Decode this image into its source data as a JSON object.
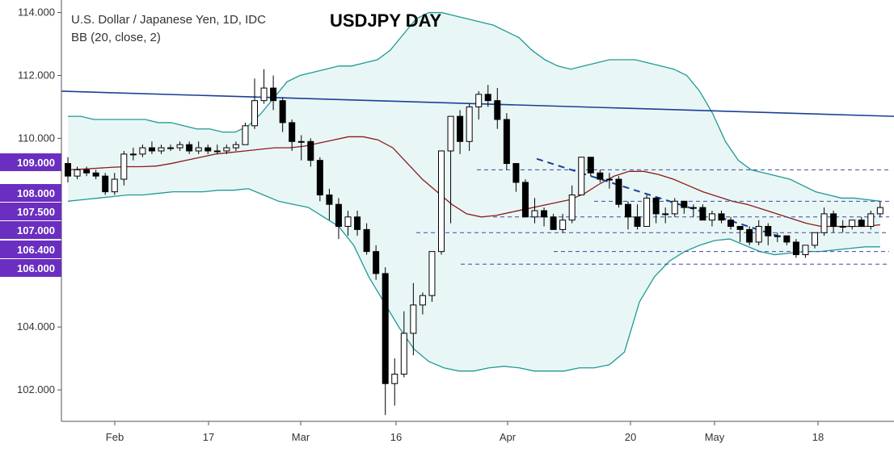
{
  "chart_data": {
    "type": "candlestick",
    "title": "USDJPY DAY",
    "symbol_label": "U.S. Dollar / Japanese Yen, 1D, IDC",
    "indicator_label": "BB (20, close, 2)",
    "ylim": [
      101.0,
      114.4
    ],
    "y_ticks": [
      "102.000",
      "104.000",
      "110.000",
      "112.000",
      "114.000"
    ],
    "highlighted_levels": [
      {
        "label": "109.000",
        "value": 109.0
      },
      {
        "label": "108.000",
        "value": 108.0
      },
      {
        "label": "107.500",
        "value": 107.5
      },
      {
        "label": "107.000",
        "value": 107.0
      },
      {
        "label": "106.400",
        "value": 106.4
      },
      {
        "label": "106.000",
        "value": 106.0
      }
    ],
    "x_ticks": [
      "Feb",
      "17",
      "Mar",
      "16",
      "Apr",
      "20",
      "May",
      "18"
    ],
    "grid": false,
    "series": [
      {
        "name": "candles",
        "o": [
          109.2,
          108.8,
          109.0,
          108.9,
          108.8,
          108.3,
          108.7,
          109.5,
          109.5,
          109.7,
          109.6,
          109.7,
          109.7,
          109.8,
          109.6,
          109.7,
          109.6,
          109.6,
          109.7,
          109.8,
          110.4,
          111.2,
          111.6,
          111.2,
          110.5,
          109.9,
          109.9,
          109.3,
          108.2,
          107.9,
          107.2,
          107.5,
          107.1,
          106.4,
          105.7,
          102.2,
          102.5,
          103.8,
          104.7,
          105.0,
          106.4,
          109.6,
          110.7,
          109.9,
          111.0,
          111.4,
          111.2,
          110.6,
          109.2,
          108.6,
          107.5,
          107.7,
          107.5,
          107.1,
          107.4,
          108.2,
          109.4,
          108.9,
          108.7,
          108.7,
          107.9,
          107.5,
          107.2,
          108.1,
          107.6,
          107.6,
          108.0,
          107.8,
          107.8,
          107.4,
          107.6,
          107.4,
          107.2,
          107.1,
          106.7,
          107.2,
          106.9,
          106.9,
          106.7,
          106.3,
          106.6,
          107.0,
          107.6,
          107.2,
          107.2,
          107.4,
          107.2,
          107.6
        ]
      },
      {
        "name": "candles_close",
        "c": [
          108.8,
          109.0,
          108.9,
          108.8,
          108.3,
          108.7,
          109.5,
          109.5,
          109.7,
          109.6,
          109.7,
          109.7,
          109.8,
          109.6,
          109.7,
          109.6,
          109.6,
          109.7,
          109.8,
          110.4,
          111.2,
          111.6,
          111.2,
          110.5,
          109.9,
          109.9,
          109.3,
          108.2,
          107.9,
          107.2,
          107.5,
          107.1,
          106.4,
          105.7,
          102.2,
          102.5,
          103.8,
          104.7,
          105.0,
          106.4,
          109.6,
          110.7,
          109.9,
          111.0,
          111.4,
          111.2,
          110.6,
          109.2,
          108.6,
          107.5,
          107.7,
          107.5,
          107.1,
          107.4,
          108.2,
          109.4,
          108.9,
          108.7,
          108.7,
          107.9,
          107.5,
          107.2,
          108.1,
          107.6,
          107.6,
          108.0,
          107.8,
          107.8,
          107.4,
          107.6,
          107.4,
          107.2,
          107.1,
          106.7,
          107.2,
          106.9,
          106.9,
          106.7,
          106.3,
          106.6,
          107.0,
          107.6,
          107.2,
          107.2,
          107.4,
          107.2,
          107.6,
          107.8
        ]
      },
      {
        "name": "candles_high",
        "h": [
          109.4,
          109.1,
          109.1,
          109.0,
          108.9,
          108.9,
          109.6,
          109.7,
          109.8,
          109.9,
          109.8,
          109.8,
          109.9,
          109.9,
          109.9,
          109.8,
          109.8,
          109.8,
          109.9,
          110.5,
          111.9,
          112.2,
          112.0,
          111.3,
          110.6,
          110.1,
          110.0,
          109.4,
          108.4,
          108.1,
          107.7,
          107.7,
          107.3,
          106.6,
          105.9,
          103.0,
          104.5,
          105.4,
          105.1,
          106.4,
          107.3,
          109.9,
          110.9,
          111.1,
          111.5,
          111.7,
          111.6,
          110.8,
          109.2,
          108.7,
          108.1,
          107.8,
          107.6,
          107.6,
          108.5,
          109.4,
          109.4,
          109.0,
          108.9,
          108.8,
          108.0,
          107.9,
          108.2,
          108.1,
          107.8,
          108.1,
          108.0,
          107.9,
          107.9,
          107.7,
          107.7,
          107.5,
          107.2,
          107.2,
          107.4,
          107.3,
          107.0,
          106.9,
          106.8,
          106.6,
          107.0,
          107.8,
          107.7,
          107.4,
          107.4,
          107.5,
          107.7,
          108.0
        ]
      },
      {
        "name": "candles_low",
        "l": [
          108.6,
          108.7,
          108.8,
          108.7,
          108.2,
          108.2,
          108.5,
          109.3,
          109.4,
          109.5,
          109.5,
          109.6,
          109.6,
          109.5,
          109.5,
          109.5,
          109.5,
          109.5,
          109.6,
          109.8,
          110.3,
          111.1,
          110.9,
          110.2,
          109.6,
          109.3,
          109.1,
          108.0,
          107.4,
          106.8,
          106.9,
          106.9,
          106.3,
          105.5,
          101.2,
          101.5,
          102.4,
          103.1,
          104.4,
          104.8,
          106.3,
          107.3,
          109.5,
          109.6,
          110.6,
          111.0,
          110.3,
          109.0,
          108.3,
          107.5,
          107.3,
          107.2,
          107.1,
          107.0,
          107.3,
          108.2,
          108.8,
          108.6,
          108.4,
          107.8,
          107.1,
          107.1,
          107.2,
          107.3,
          107.3,
          107.5,
          107.6,
          107.5,
          107.4,
          107.2,
          107.3,
          107.1,
          106.7,
          106.6,
          106.6,
          106.6,
          106.7,
          106.6,
          106.2,
          106.2,
          106.5,
          106.9,
          107.0,
          107.0,
          107.1,
          107.2,
          107.1,
          107.5
        ]
      },
      {
        "name": "BB upper",
        "values": [
          110.7,
          110.7,
          110.6,
          110.6,
          110.6,
          110.6,
          110.6,
          110.5,
          110.5,
          110.4,
          110.3,
          110.3,
          110.2,
          110.2,
          110.4,
          110.8,
          111.3,
          111.8,
          112.0,
          112.1,
          112.2,
          112.3,
          112.3,
          112.4,
          112.5,
          112.8,
          113.3,
          113.8,
          114.0,
          114.0,
          113.9,
          113.8,
          113.7,
          113.6,
          113.4,
          113.2,
          112.8,
          112.5,
          112.3,
          112.2,
          112.3,
          112.4,
          112.5,
          112.5,
          112.5,
          112.4,
          112.3,
          112.2,
          112.0,
          111.5,
          110.8,
          109.9,
          109.3,
          109.0,
          108.9,
          108.8,
          108.7,
          108.5,
          108.3,
          108.2,
          108.1,
          108.1,
          108.05,
          108.0
        ]
      },
      {
        "name": "BB basis",
        "values": [
          109.0,
          109.02,
          109.05,
          109.08,
          109.1,
          109.1,
          109.12,
          109.2,
          109.3,
          109.4,
          109.5,
          109.55,
          109.6,
          109.65,
          109.7,
          109.7,
          109.75,
          109.85,
          109.95,
          110.05,
          110.05,
          109.95,
          109.7,
          109.2,
          108.7,
          108.3,
          107.9,
          107.6,
          107.5,
          107.55,
          107.65,
          107.75,
          107.85,
          107.95,
          108.05,
          108.25,
          108.55,
          108.8,
          108.95,
          108.95,
          108.85,
          108.7,
          108.5,
          108.3,
          108.15,
          108.0,
          107.9,
          107.75,
          107.6,
          107.45,
          107.3,
          107.2,
          107.2,
          107.2,
          107.2,
          107.25
        ]
      },
      {
        "name": "BB lower",
        "values": [
          108.0,
          108.05,
          108.1,
          108.15,
          108.2,
          108.2,
          108.25,
          108.3,
          108.3,
          108.3,
          108.35,
          108.35,
          108.4,
          108.2,
          108.0,
          107.9,
          107.8,
          107.5,
          107.2,
          106.6,
          105.6,
          104.8,
          104.0,
          103.3,
          102.9,
          102.7,
          102.6,
          102.6,
          102.7,
          102.75,
          102.7,
          102.6,
          102.6,
          102.6,
          102.7,
          102.7,
          102.8,
          103.2,
          104.8,
          105.6,
          106.1,
          106.4,
          106.6,
          106.75,
          106.8,
          106.6,
          106.4,
          106.3,
          106.35,
          106.4,
          106.4,
          106.45,
          106.5,
          106.55,
          106.55
        ]
      },
      {
        "name": "Trend line",
        "values": [
          111.5,
          110.7
        ]
      },
      {
        "name": "Support/Resistance",
        "values": [
          109.0,
          108.0,
          107.5,
          107.0,
          106.4,
          106.0
        ]
      }
    ],
    "colors": {
      "up_fill": "#ffffff",
      "down_fill": "#000000",
      "bb_band": "#1f9a94",
      "bb_fill": "#e9f6f6",
      "basis": "#8b1a1a",
      "trend": "#1c3f94",
      "dashed_level": "#3a4aa0",
      "highlight_bg": "#6a2fc0"
    }
  }
}
